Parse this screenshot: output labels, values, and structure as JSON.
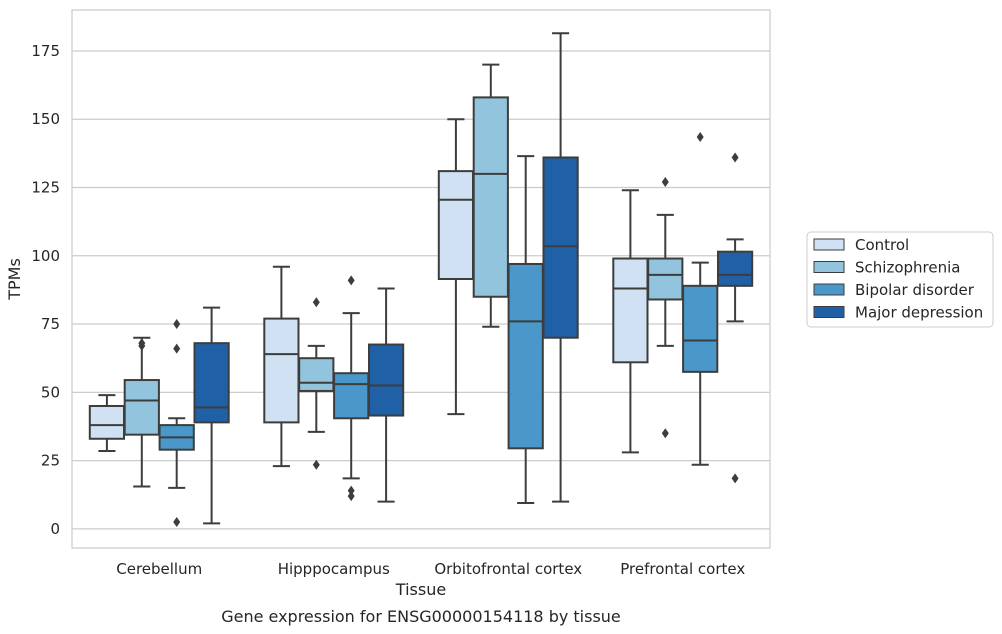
{
  "chart_data": {
    "type": "box",
    "title": "",
    "caption": "Gene expression for ENSG00000154118 by tissue",
    "xlabel": "Tissue",
    "ylabel": "TPMs",
    "ylim": [
      -7,
      190
    ],
    "yticks": [
      0,
      25,
      50,
      75,
      100,
      125,
      150,
      175
    ],
    "grid": "horizontal",
    "legend_position": "right",
    "categories": [
      "Cerebellum",
      "Hipppocampus",
      "Orbitofrontal cortex",
      "Prefrontal cortex"
    ],
    "series": [
      {
        "name": "Control",
        "color": "#cfe1f2",
        "boxes": [
          {
            "whisker_low": 28.5,
            "q1": 33,
            "median": 38,
            "q3": 45,
            "whisker_high": 49,
            "outliers": []
          },
          {
            "whisker_low": 23,
            "q1": 39,
            "median": 64,
            "q3": 77,
            "whisker_high": 96,
            "outliers": []
          },
          {
            "whisker_low": 42,
            "q1": 91.5,
            "median": 120.5,
            "q3": 131,
            "whisker_high": 150,
            "outliers": []
          },
          {
            "whisker_low": 28,
            "q1": 61,
            "median": 88,
            "q3": 99,
            "whisker_high": 124,
            "outliers": []
          }
        ]
      },
      {
        "name": "Schizophrenia",
        "color": "#93c4de",
        "boxes": [
          {
            "whisker_low": 15.5,
            "q1": 34.5,
            "median": 47,
            "q3": 54.5,
            "whisker_high": 70,
            "outliers": [
              67,
              68
            ]
          },
          {
            "whisker_low": 35.5,
            "q1": 50.5,
            "median": 53.5,
            "q3": 62.5,
            "whisker_high": 67,
            "outliers": [
              23.5,
              83
            ]
          },
          {
            "whisker_low": 74,
            "q1": 85,
            "median": 130,
            "q3": 158,
            "whisker_high": 170,
            "outliers": []
          },
          {
            "whisker_low": 67,
            "q1": 84,
            "median": 93,
            "q3": 99,
            "whisker_high": 115,
            "outliers": [
              35,
              127
            ]
          }
        ]
      },
      {
        "name": "Bipolar disorder",
        "color": "#4a98c9",
        "boxes": [
          {
            "whisker_low": 15,
            "q1": 29,
            "median": 33.5,
            "q3": 38,
            "whisker_high": 40.5,
            "outliers": [
              2.5,
              66,
              75
            ]
          },
          {
            "whisker_low": 18.5,
            "q1": 40.5,
            "median": 53,
            "q3": 57,
            "whisker_high": 79,
            "outliers": [
              12,
              14,
              91
            ]
          },
          {
            "whisker_low": 9.5,
            "q1": 29.5,
            "median": 76,
            "q3": 97,
            "whisker_high": 136.5,
            "outliers": []
          },
          {
            "whisker_low": 23.5,
            "q1": 57.5,
            "median": 69,
            "q3": 89,
            "whisker_high": 97.5,
            "outliers": [
              143.5
            ]
          }
        ]
      },
      {
        "name": "Major depression",
        "color": "#2060a7",
        "boxes": [
          {
            "whisker_low": 2,
            "q1": 39,
            "median": 44.5,
            "q3": 68,
            "whisker_high": 81,
            "outliers": []
          },
          {
            "whisker_low": 10,
            "q1": 41.5,
            "median": 52.5,
            "q3": 67.5,
            "whisker_high": 88,
            "outliers": []
          },
          {
            "whisker_low": 10,
            "q1": 70,
            "median": 103.5,
            "q3": 136,
            "whisker_high": 181.5,
            "outliers": []
          },
          {
            "whisker_low": 76,
            "q1": 89,
            "median": 93,
            "q3": 101.5,
            "whisker_high": 106,
            "outliers": [
              18.5,
              136
            ]
          }
        ]
      }
    ]
  }
}
